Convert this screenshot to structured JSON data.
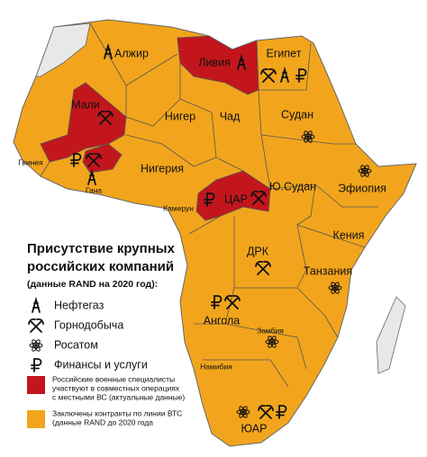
{
  "title_lines": [
    "Присутствие крупных",
    "российских компаний"
  ],
  "subtitle": "(данные RAND на 2020 год):",
  "legend": {
    "sectors": [
      "Нефтегаз",
      "Горнодобыча",
      "Росатом",
      "Финансы и услуги"
    ],
    "areas": [
      {
        "color": "#c3161c",
        "lines": [
          "Российские военные специалисты",
          "участвуют в совместных операциях",
          "с местными ВС (актуальные данные)"
        ]
      },
      {
        "color": "#f2a51c",
        "lines": [
          "Заключены контракты по линии ВТС",
          "(данные RAND до 2020 года"
        ]
      }
    ]
  },
  "countries": [
    "Алжир",
    "Ливия",
    "Египет",
    "Мали",
    "Нигер",
    "Чад",
    "Судан",
    "Гвинея",
    "Гана",
    "Нигерия",
    "ЦАР",
    "Ю.Судан",
    "Эфиопия",
    "Камерун",
    "Кения",
    "ДРК",
    "Танзания",
    "Ангола",
    "Замбия",
    "Намибия",
    "ЮАР"
  ]
}
